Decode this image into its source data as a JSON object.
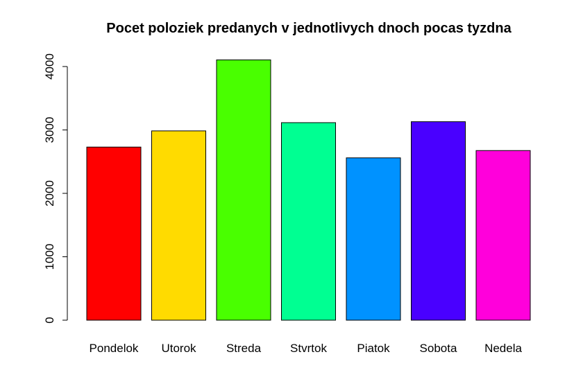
{
  "chart_data": {
    "type": "bar",
    "title": "Pocet poloziek predanych v jednotlivych dnoch pocas tyzdna",
    "xlabel": "",
    "ylabel": "",
    "categories": [
      "Pondelok",
      "Utorok",
      "Streda",
      "Stvrtok",
      "Piatok",
      "Sobota",
      "Nedela"
    ],
    "values": [
      2730,
      2985,
      4105,
      3115,
      2560,
      3130,
      2675
    ],
    "colors": [
      "#FF0000",
      "#FFDB00",
      "#49FF00",
      "#00FF92",
      "#0092FF",
      "#4900FF",
      "#FF00DB"
    ],
    "ylim": [
      0,
      4200
    ],
    "yticks": [
      0,
      1000,
      2000,
      3000,
      4000
    ],
    "ytick_labels": [
      "0",
      "1000",
      "2000",
      "3000",
      "4000"
    ],
    "grid": false,
    "legend": "none"
  }
}
